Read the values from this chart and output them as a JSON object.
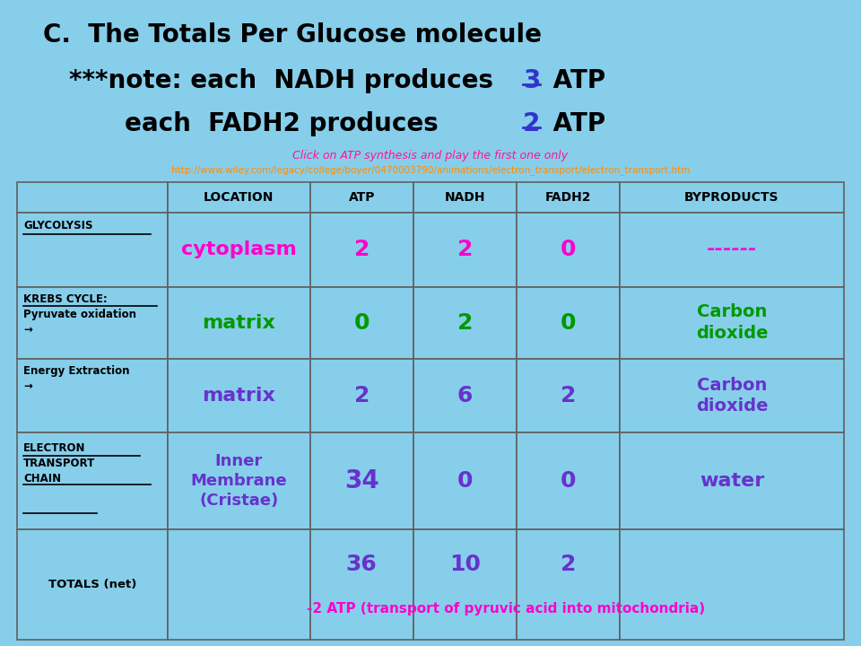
{
  "bg_color": "#87CEEB",
  "title_line1": "C.  The Totals Per Glucose molecule",
  "subtitle1": "Click on ATP synthesis and play the first one only",
  "subtitle2": "http://www.wiley.com/legacy/college/boyer/0470003790/animations/electron_transport/electron_transport.htm",
  "col_headers": [
    "LOCATION",
    "ATP",
    "NADH",
    "FADH2",
    "BYPRODUCTS"
  ],
  "magenta": "#FF00CC",
  "green": "#009900",
  "purple": "#6633CC",
  "black": "#000000",
  "pink": "#FF1493",
  "orange": "#FF8C00",
  "darkblue": "#3333CC",
  "border_color": "#606060"
}
